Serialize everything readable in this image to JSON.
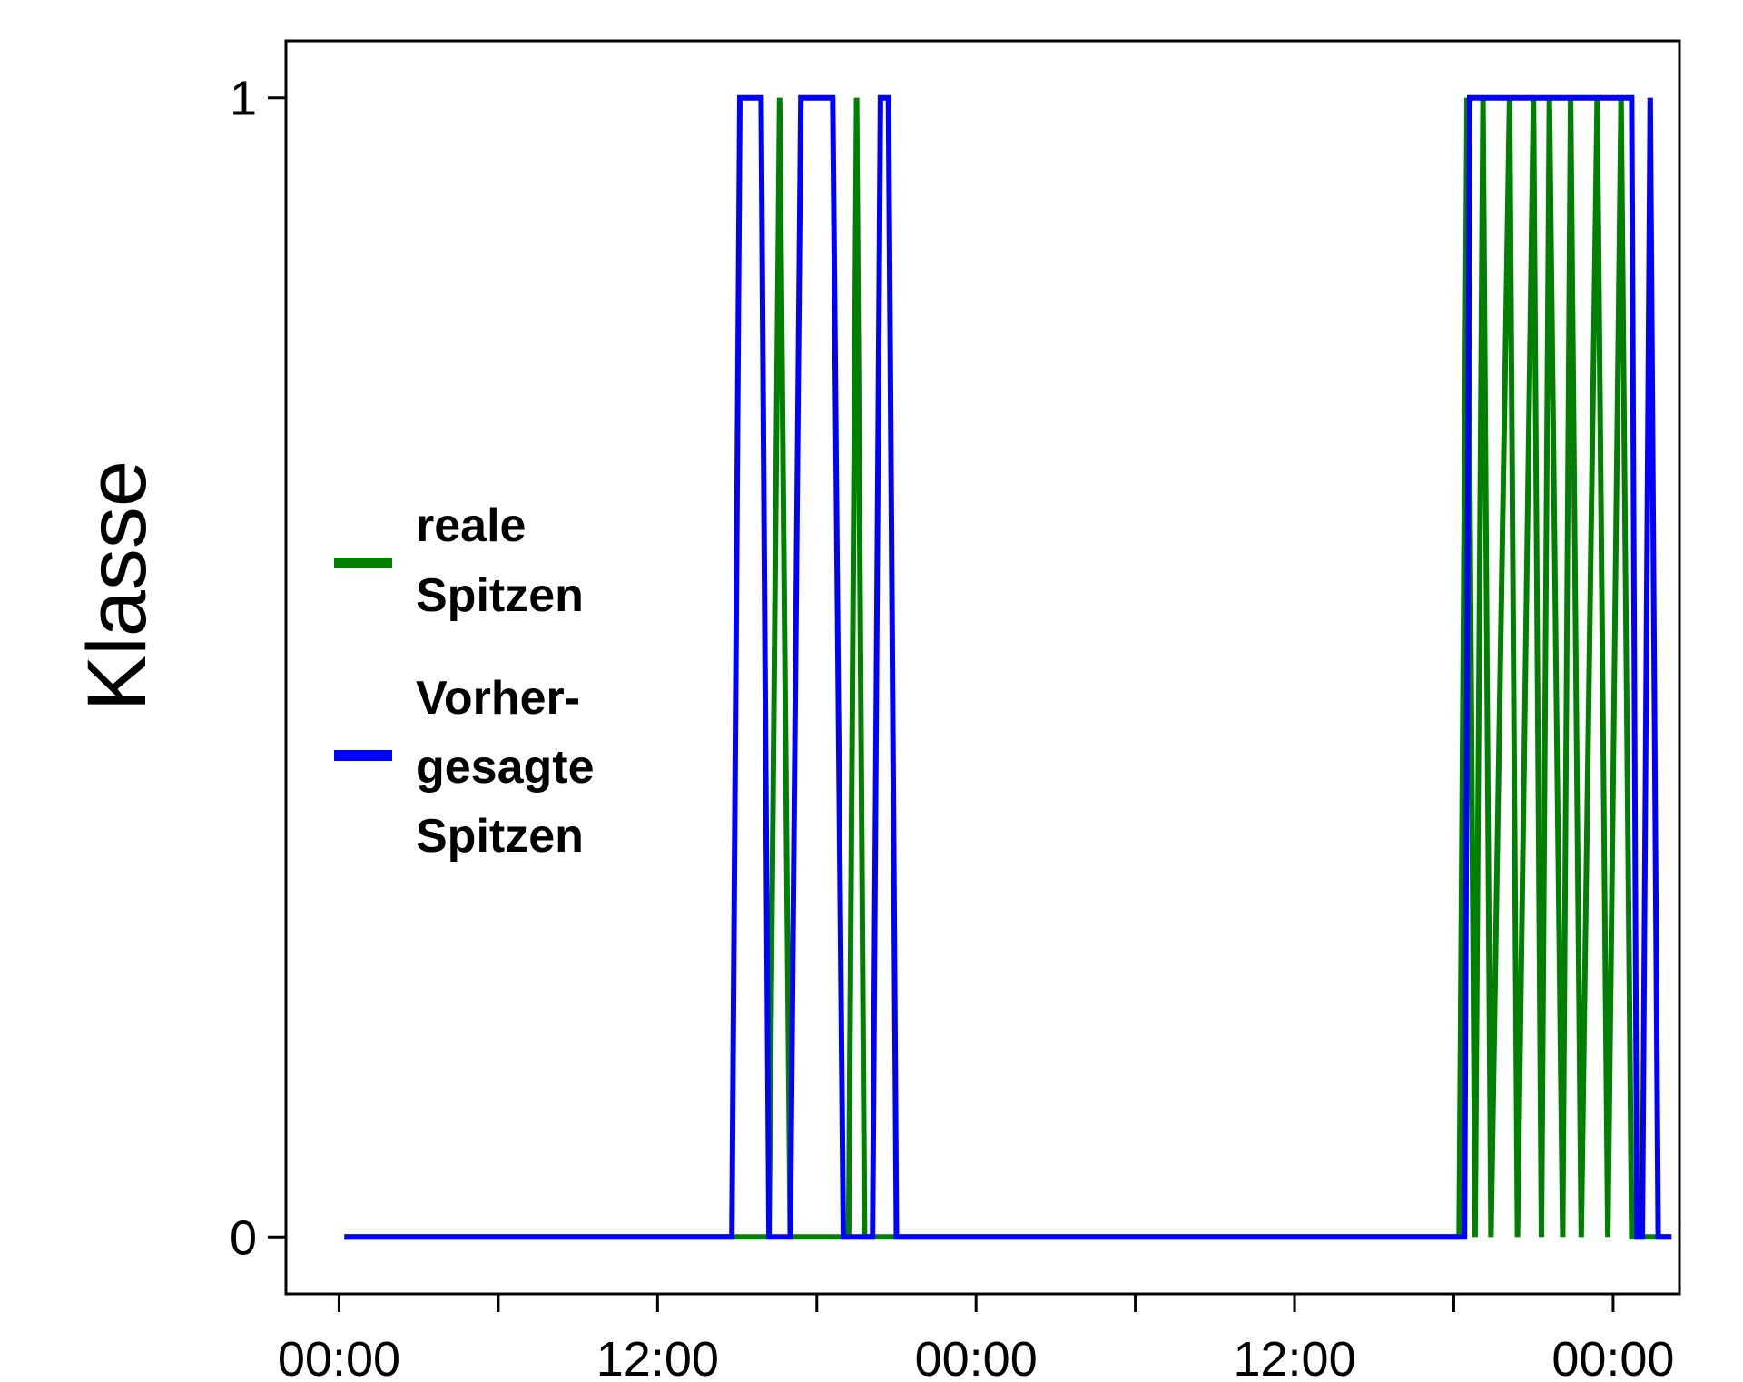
{
  "chart_data": {
    "type": "line",
    "title": "",
    "xlabel": "",
    "ylabel": "Klasse",
    "x_tick_labels": [
      "00:00",
      "12:00",
      "00:00",
      "12:00",
      "00:00"
    ],
    "y_ticks": [
      0,
      1
    ],
    "y_tick_labels": [
      "0",
      "1"
    ],
    "xlim_hours": [
      -2.0,
      50.5
    ],
    "ylim": [
      -0.05,
      1.05
    ],
    "grid": false,
    "legend_position": "center-left",
    "series": [
      {
        "name": "reale Spitzen",
        "color": "#008000",
        "x_hours": [
          0.2,
          16.2,
          16.6,
          17.0,
          19.2,
          19.5,
          19.8,
          20.6,
          42.2,
          42.5,
          42.8,
          43.1,
          43.4,
          44.1,
          44.4,
          45.0,
          45.3,
          45.6,
          46.1,
          46.4,
          46.8,
          47.4,
          47.8,
          48.3,
          48.7,
          49.0,
          50.2
        ],
        "y": [
          0,
          0,
          1,
          0,
          0,
          1,
          0,
          0,
          0,
          1,
          0,
          1,
          0,
          1,
          0,
          1,
          0,
          1,
          0,
          1,
          0,
          1,
          0,
          1,
          0,
          0,
          0
        ]
      },
      {
        "name": "Vorher-gesagte Spitzen",
        "color": "#0000ff",
        "x_hours": [
          0.2,
          14.8,
          15.1,
          15.9,
          16.2,
          17.0,
          17.4,
          18.6,
          19.0,
          20.1,
          20.4,
          20.7,
          21.0,
          42.4,
          42.6,
          44.5,
          44.7,
          45.2,
          45.4,
          46.0,
          46.2,
          47.4,
          47.6,
          48.7,
          48.9,
          49.1,
          49.4,
          49.7,
          50.2
        ],
        "y": [
          0,
          0,
          1,
          1,
          0,
          0,
          1,
          1,
          0,
          0,
          1,
          1,
          0,
          0,
          1,
          1,
          1,
          1,
          1,
          1,
          1,
          1,
          1,
          1,
          0,
          0,
          1,
          0,
          0
        ]
      }
    ]
  },
  "legend": {
    "items": [
      {
        "lines": [
          "reale",
          "Spitzen"
        ],
        "color": "#008000"
      },
      {
        "lines": [
          "Vorher-",
          "gesagte",
          "Spitzen"
        ],
        "color": "#0000ff"
      }
    ]
  }
}
